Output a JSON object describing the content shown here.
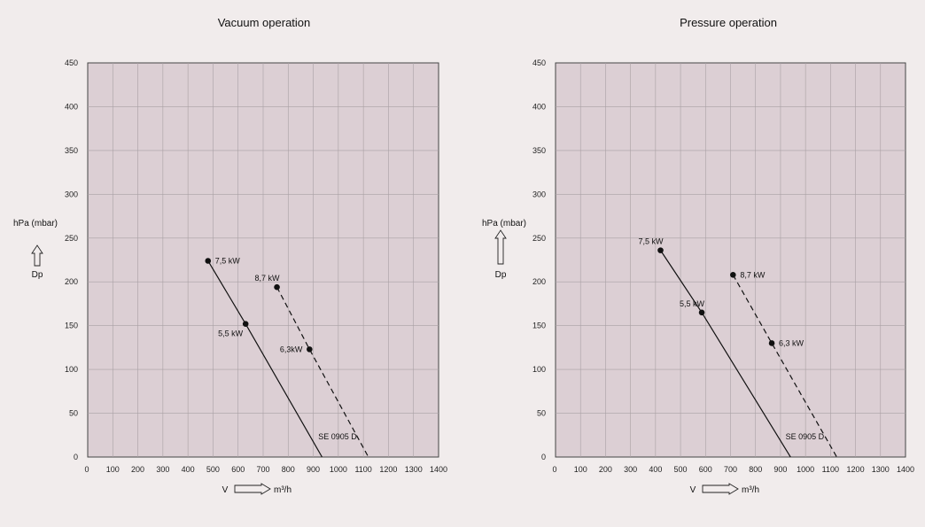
{
  "chart_data": [
    {
      "type": "line",
      "title": "Vacuum operation",
      "ylabel": "hPa (mbar)",
      "ylabel_symbol": "Dp",
      "xlabel_symbol": "V",
      "xlabel_unit": "m³/h",
      "xlim": [
        0,
        1400
      ],
      "ylim": [
        0,
        450
      ],
      "xticks": [
        "0",
        "100",
        "200",
        "300",
        "400",
        "500",
        "600",
        "700",
        "800",
        "900",
        "1000",
        "1100",
        "1200",
        "1300",
        "1400"
      ],
      "yticks": [
        "0",
        "50",
        "100",
        "150",
        "200",
        "250",
        "300",
        "350",
        "400",
        "450"
      ],
      "grid": true,
      "series": [
        {
          "name": "SE 0905 D",
          "style": "solid",
          "x": [
            480,
            630,
            935
          ],
          "y": [
            224,
            152,
            0
          ],
          "markers": [
            {
              "x": 480,
              "y": 224,
              "label": "7,5 kW",
              "pos": "right"
            },
            {
              "x": 630,
              "y": 152,
              "label": "5,5 kW",
              "pos": "below-left"
            }
          ]
        },
        {
          "style": "dashed",
          "x": [
            755,
            885,
            1120
          ],
          "y": [
            194,
            123,
            0
          ],
          "markers": [
            {
              "x": 755,
              "y": 194,
              "label": "8,7 kW",
              "pos": "above-left"
            },
            {
              "x": 885,
              "y": 123,
              "label": "6,3kW",
              "pos": "left"
            }
          ]
        }
      ],
      "annotations": [
        {
          "text": "SE 0905 D",
          "x": 920,
          "y": 20
        }
      ]
    },
    {
      "type": "line",
      "title": "Pressure operation",
      "ylabel": "hPa (mbar)",
      "ylabel_symbol": "Dp",
      "xlabel_symbol": "V",
      "xlabel_unit": "m³/h",
      "xlim": [
        0,
        1400
      ],
      "ylim": [
        0,
        450
      ],
      "xticks": [
        "0",
        "100",
        "200",
        "300",
        "400",
        "500",
        "600",
        "700",
        "800",
        "900",
        "1000",
        "1100",
        "1200",
        "1300",
        "1400"
      ],
      "yticks": [
        "0",
        "50",
        "100",
        "150",
        "200",
        "250",
        "300",
        "350",
        "400",
        "450"
      ],
      "grid": true,
      "series": [
        {
          "name": "SE 0905 D",
          "style": "solid",
          "x": [
            420,
            585,
            940
          ],
          "y": [
            236,
            165,
            0
          ],
          "markers": [
            {
              "x": 420,
              "y": 236,
              "label": "7,5 kW",
              "pos": "above-left"
            },
            {
              "x": 585,
              "y": 165,
              "label": "5,5 kW",
              "pos": "above-left"
            }
          ]
        },
        {
          "style": "dashed",
          "x": [
            710,
            865,
            1125
          ],
          "y": [
            208,
            130,
            0
          ],
          "markers": [
            {
              "x": 710,
              "y": 208,
              "label": "8,7 kW",
              "pos": "right"
            },
            {
              "x": 865,
              "y": 130,
              "label": "6,3 kW",
              "pos": "right"
            }
          ]
        }
      ],
      "annotations": [
        {
          "text": "SE 0905 D",
          "x": 920,
          "y": 20
        }
      ]
    }
  ]
}
